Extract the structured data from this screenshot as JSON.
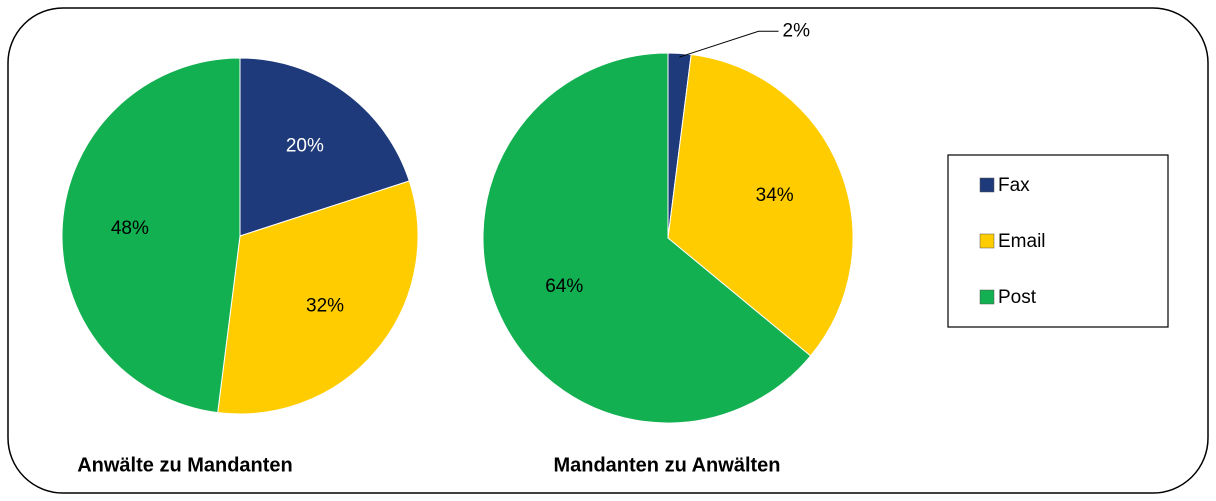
{
  "chart_data": [
    {
      "type": "pie",
      "title": "Anwälte zu Mandanten",
      "categories": [
        "Fax",
        "Email",
        "Post"
      ],
      "values": [
        20,
        32,
        48
      ],
      "value_labels": [
        "20%",
        "32%",
        "48%"
      ],
      "colors": [
        "#1f3a7a",
        "#ffcc00",
        "#12b050"
      ],
      "legend": "right"
    },
    {
      "type": "pie",
      "title": "Mandanten zu Anwälten",
      "categories": [
        "Fax",
        "Email",
        "Post"
      ],
      "values": [
        2,
        34,
        64
      ],
      "value_labels": [
        "2%",
        "34%",
        "64%"
      ],
      "colors": [
        "#1f3a7a",
        "#ffcc00",
        "#12b050"
      ]
    }
  ]
}
